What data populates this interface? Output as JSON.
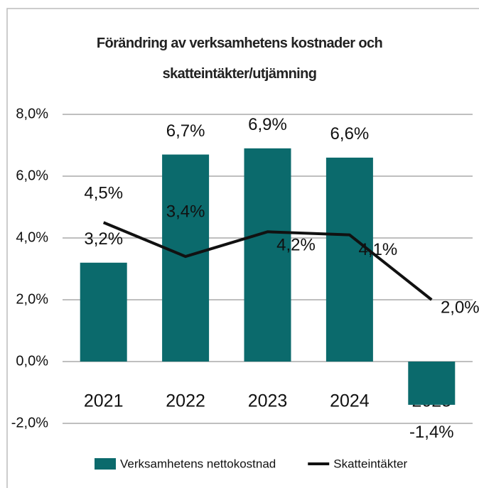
{
  "chart_data": {
    "type": "bar",
    "title": "Förändring av verksamhetens kostnader och skatteintäkter/utjämning",
    "categories": [
      "2021",
      "2022",
      "2023",
      "2024",
      "2025"
    ],
    "series": [
      {
        "name": "Verksamhetens nettokostnad",
        "type": "bar",
        "color": "#0b6a6c",
        "values": [
          3.2,
          6.7,
          6.9,
          6.6,
          -1.4
        ],
        "value_labels": [
          "3,2%",
          "6,7%",
          "6,9%",
          "6,6%",
          "-1,4%"
        ]
      },
      {
        "name": "Skatteintäkter",
        "type": "line",
        "color": "#111111",
        "values": [
          4.5,
          3.4,
          4.2,
          4.1,
          2.0
        ],
        "value_labels": [
          "4,5%",
          "3,4%",
          "4,2%",
          "4,1%",
          "2,0%"
        ]
      }
    ],
    "ylim": [
      -2,
      8
    ],
    "yticks": [
      {
        "value": -2,
        "label": "-2,0%"
      },
      {
        "value": 0,
        "label": "0,0%"
      },
      {
        "value": 2,
        "label": "2,0%"
      },
      {
        "value": 4,
        "label": "4,0%"
      },
      {
        "value": 6,
        "label": "6,0%"
      },
      {
        "value": 8,
        "label": "8,0%"
      }
    ],
    "grid": true,
    "legend": "bottom"
  }
}
